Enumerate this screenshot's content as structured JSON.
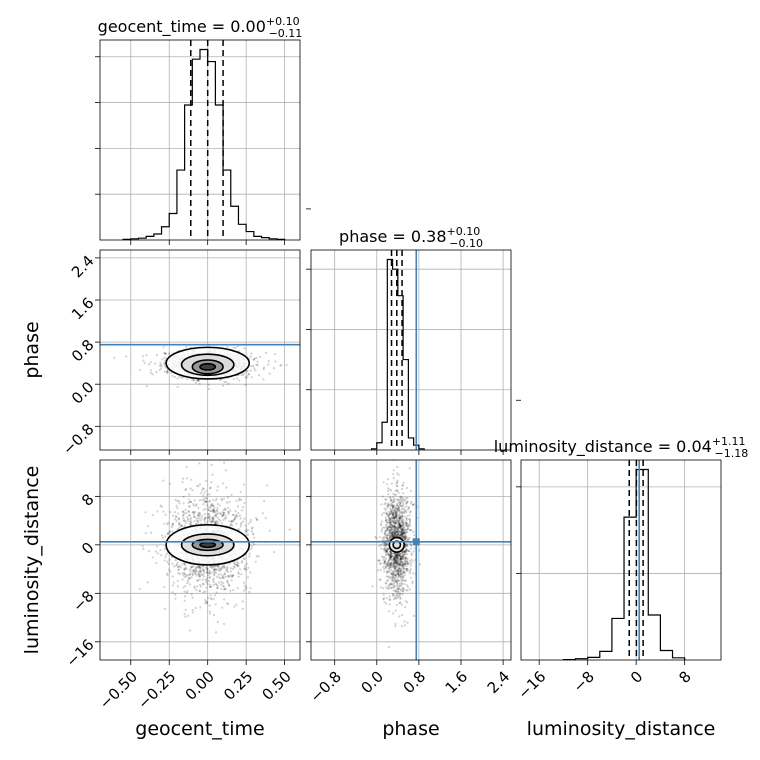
{
  "chart_data": {
    "type": "corner",
    "parameters": [
      "geocent_time",
      "phase",
      "luminosity_distance"
    ],
    "titles": {
      "geocent_time": {
        "name": "geocent_time",
        "median": "0.00",
        "plus": "+0.10",
        "minus": "−0.11"
      },
      "phase": {
        "name": "phase",
        "median": "0.38",
        "plus": "+0.10",
        "minus": "−0.10"
      },
      "luminosity_distance": {
        "name": "luminosity_distance",
        "median": "0.04",
        "plus": "+1.11",
        "minus": "−1.18"
      }
    },
    "axis_labels": {
      "x": [
        "geocent_time",
        "phase",
        "luminosity_distance"
      ],
      "y": [
        "phase",
        "luminosity_distance"
      ]
    },
    "ranges": {
      "geocent_time": [
        -0.7,
        0.6
      ],
      "phase": [
        -1.25,
        2.55
      ],
      "luminosity_distance": [
        -19,
        14
      ]
    },
    "ticks": {
      "geocent_time": {
        "values": [
          -0.5,
          -0.25,
          0.0,
          0.25,
          0.5
        ],
        "labels": [
          "−0.50",
          "−0.25",
          "0.00",
          "0.25",
          "0.50"
        ]
      },
      "phase": {
        "values": [
          -0.8,
          0.0,
          0.8,
          1.6,
          2.4
        ],
        "labels": [
          "−0.8",
          "0.0",
          "0.8",
          "1.6",
          "2.4"
        ]
      },
      "luminosity_distance": {
        "values": [
          -16,
          -8,
          0,
          8
        ],
        "labels": [
          "−16",
          "−8",
          "0",
          "8"
        ]
      }
    },
    "truths": {
      "geocent_time": null,
      "phase": 0.75,
      "luminosity_distance": 0.5
    },
    "quantiles": {
      "geocent_time": [
        -0.11,
        0.0,
        0.1
      ],
      "phase": [
        0.28,
        0.38,
        0.48
      ],
      "luminosity_distance": [
        -1.14,
        0.04,
        1.15
      ]
    },
    "histograms": {
      "geocent_time": {
        "edges": [
          -0.55,
          -0.5,
          -0.45,
          -0.4,
          -0.35,
          -0.3,
          -0.25,
          -0.2,
          -0.15,
          -0.1,
          -0.05,
          0.0,
          0.05,
          0.1,
          0.15,
          0.2,
          0.25,
          0.3,
          0.35,
          0.4,
          0.45,
          0.5
        ],
        "counts": [
          0.5,
          1,
          1.5,
          3,
          5,
          11,
          22,
          58,
          112,
          150,
          158,
          148,
          112,
          58,
          28,
          13,
          7,
          3,
          2,
          1,
          0.5
        ]
      },
      "phase": {
        "edges": [
          -0.1,
          0.0,
          0.1,
          0.2,
          0.3,
          0.4,
          0.5,
          0.6,
          0.7,
          0.8,
          0.9
        ],
        "counts": [
          1,
          6,
          23,
          158,
          150,
          128,
          75,
          10,
          4,
          1
        ]
      },
      "luminosity_distance": {
        "edges": [
          -12,
          -10,
          -8,
          -6,
          -4,
          -2,
          0,
          2,
          4,
          6,
          8
        ],
        "counts": [
          0.5,
          1.5,
          3,
          10,
          48,
          165,
          220,
          52,
          11,
          2.5
        ]
      }
    },
    "y_ticks_diag": {
      "geocent_time": [
        38,
        76,
        114,
        152
      ],
      "phase": [
        50,
        100,
        150,
        200
      ],
      "luminosity_distance": [
        100,
        200,
        300
      ]
    },
    "joint": {
      "phase_vs_geocent_time": {
        "scatter": {
          "cx": 0.0,
          "cy": 0.38,
          "sx": 0.11,
          "sy": 0.1,
          "n": 1400
        },
        "contours": [
          {
            "cx": 0.0,
            "cy": 0.4,
            "rx": 0.27,
            "ry": 0.3
          },
          {
            "cx": 0.0,
            "cy": 0.37,
            "rx": 0.17,
            "ry": 0.2
          },
          {
            "cx": 0.0,
            "cy": 0.33,
            "rx": 0.1,
            "ry": 0.13
          },
          {
            "cx": 0.0,
            "cy": 0.33,
            "rx": 0.05,
            "ry": 0.06
          }
        ]
      },
      "luminosity_distance_vs_geocent_time": {
        "scatter": {
          "cx": 0.0,
          "cy": 0.0,
          "sx": 0.11,
          "sy": 3.5,
          "n": 1400
        },
        "contours": [
          {
            "cx": 0.0,
            "cy": 0.0,
            "rx": 0.27,
            "ry": 3.3
          },
          {
            "cx": 0.0,
            "cy": 0.0,
            "rx": 0.17,
            "ry": 1.8
          },
          {
            "cx": 0.0,
            "cy": 0.0,
            "rx": 0.1,
            "ry": 0.9
          },
          {
            "cx": 0.0,
            "cy": 0.0,
            "rx": 0.05,
            "ry": 0.4
          }
        ]
      },
      "luminosity_distance_vs_phase": {
        "scatter": {
          "cx": 0.38,
          "cy": 0.0,
          "sx": 0.1,
          "sy": 3.5,
          "n": 1400
        },
        "contours": [
          {
            "cx": 0.38,
            "cy": 0.0,
            "rx": 0.14,
            "ry": 1.2
          },
          {
            "cx": 0.38,
            "cy": 0.0,
            "rx": 0.07,
            "ry": 0.6
          }
        ]
      }
    },
    "colors": {
      "truth": "#4682b4",
      "hist": "#000000",
      "scatter": "#000000",
      "grid": "#b0b0b0"
    }
  }
}
